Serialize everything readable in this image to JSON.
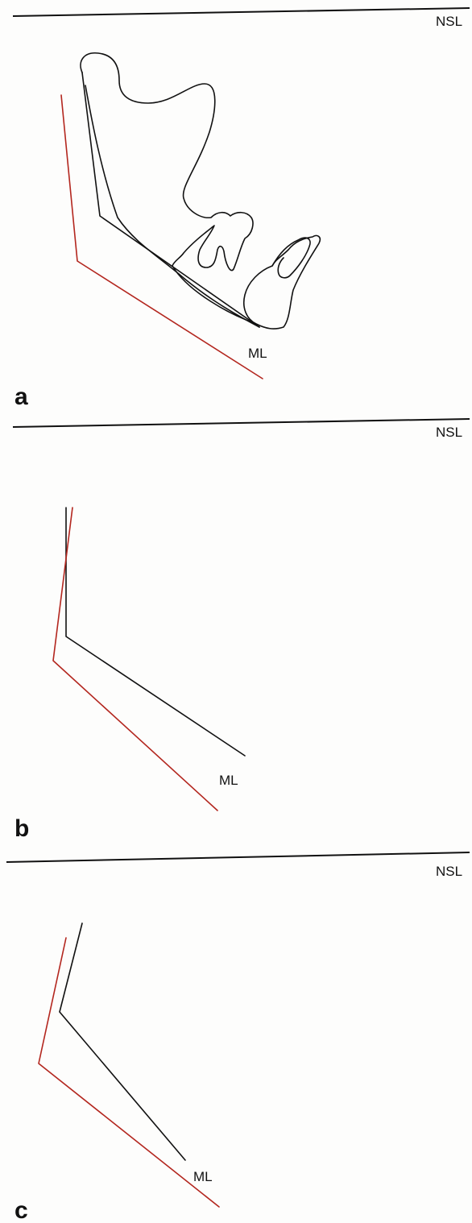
{
  "panels": [
    {
      "letter": "a",
      "ref_line_label": "NSL",
      "mandible_line_label": "ML"
    },
    {
      "letter": "b",
      "ref_line_label": "NSL",
      "mandible_line_label": "ML"
    },
    {
      "letter": "c",
      "ref_line_label": "NSL",
      "mandible_line_label": "ML"
    }
  ],
  "colors": {
    "original_outline": "#111111",
    "rotated_outline": "#b3261e"
  }
}
